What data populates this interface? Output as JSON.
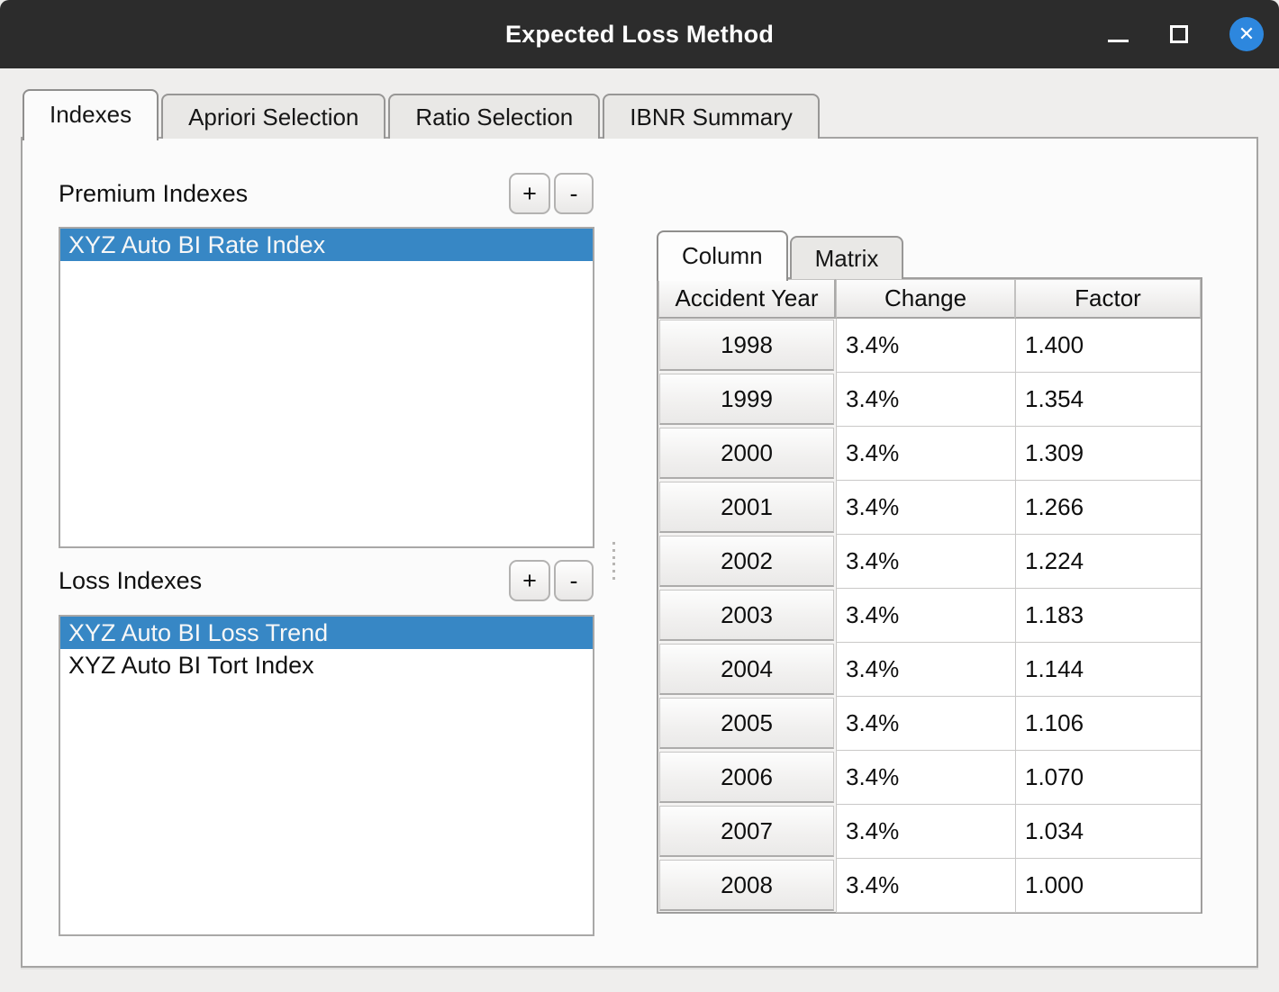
{
  "window": {
    "title": "Expected Loss Method"
  },
  "titlebar_controls": {
    "minimize_icon": "minimize",
    "maximize_icon": "maximize",
    "close_icon": "✕"
  },
  "main_tabs": [
    {
      "label": "Indexes",
      "active": true
    },
    {
      "label": "Apriori Selection",
      "active": false
    },
    {
      "label": "Ratio Selection",
      "active": false
    },
    {
      "label": "IBNR Summary",
      "active": false
    }
  ],
  "premium_section": {
    "label": "Premium Indexes",
    "add_button": "+",
    "remove_button": "-",
    "items": [
      {
        "label": "XYZ Auto BI Rate Index",
        "selected": true
      }
    ]
  },
  "loss_section": {
    "label": "Loss Indexes",
    "add_button": "+",
    "remove_button": "-",
    "items": [
      {
        "label": "XYZ Auto BI Loss Trend",
        "selected": true
      },
      {
        "label": "XYZ Auto BI Tort Index",
        "selected": false
      }
    ]
  },
  "detail_tabs": [
    {
      "label": "Column",
      "active": true
    },
    {
      "label": "Matrix",
      "active": false
    }
  ],
  "index_table": {
    "columns": [
      "Accident Year",
      "Change",
      "Factor"
    ],
    "rows": [
      {
        "year": "1998",
        "change": "3.4%",
        "factor": "1.400"
      },
      {
        "year": "1999",
        "change": "3.4%",
        "factor": "1.354"
      },
      {
        "year": "2000",
        "change": "3.4%",
        "factor": "1.309"
      },
      {
        "year": "2001",
        "change": "3.4%",
        "factor": "1.266"
      },
      {
        "year": "2002",
        "change": "3.4%",
        "factor": "1.224"
      },
      {
        "year": "2003",
        "change": "3.4%",
        "factor": "1.183"
      },
      {
        "year": "2004",
        "change": "3.4%",
        "factor": "1.144"
      },
      {
        "year": "2005",
        "change": "3.4%",
        "factor": "1.106"
      },
      {
        "year": "2006",
        "change": "3.4%",
        "factor": "1.070"
      },
      {
        "year": "2007",
        "change": "3.4%",
        "factor": "1.034"
      },
      {
        "year": "2008",
        "change": "3.4%",
        "factor": "1.000"
      }
    ]
  },
  "colors": {
    "selection_blue": "#3787c5",
    "close_button_blue": "#2d87de",
    "titlebar": "#2c2c2c"
  }
}
